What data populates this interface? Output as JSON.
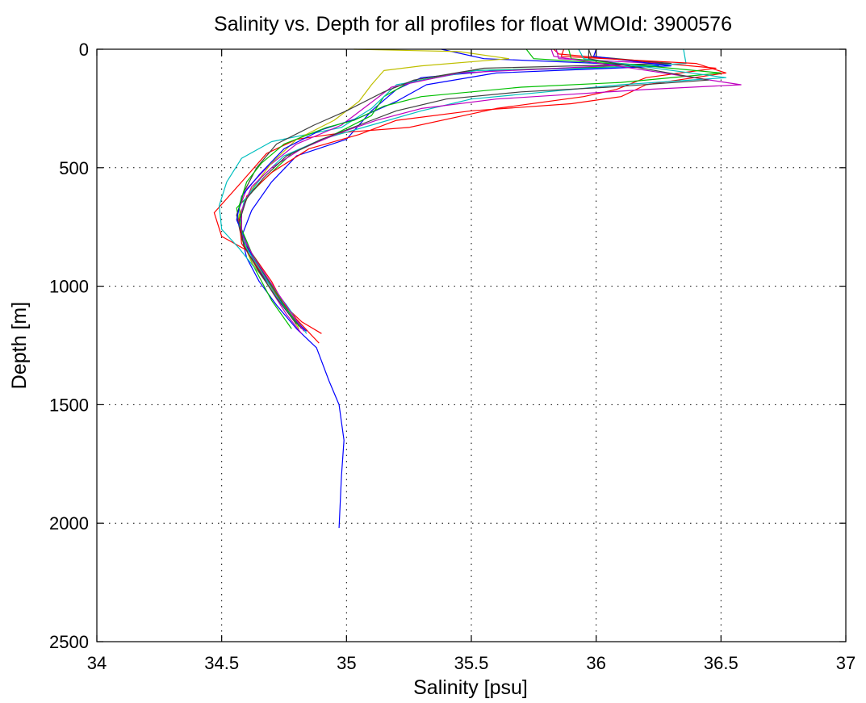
{
  "chart_data": {
    "type": "line",
    "title": "Salinity vs. Depth for all profiles for float WMOId: 3900576",
    "xlabel": "Salinity [psu]",
    "ylabel": "Depth [m]",
    "xlim": [
      34,
      37
    ],
    "ylim": [
      0,
      2500
    ],
    "y_reversed": true,
    "grid": true,
    "grid_style": "dotted",
    "legend": "none",
    "xticks": [
      "34",
      "34.5",
      "35",
      "35.5",
      "36",
      "36.5",
      "37"
    ],
    "yticks": [
      "0",
      "500",
      "1000",
      "1500",
      "2000",
      "2500"
    ],
    "series": [
      {
        "color": "#0000ff",
        "points": [
          [
            35.38,
            0
          ],
          [
            35.55,
            40
          ],
          [
            36.25,
            70
          ],
          [
            35.6,
            90
          ],
          [
            35.3,
            120
          ],
          [
            35.2,
            170
          ],
          [
            35.1,
            260
          ],
          [
            35.0,
            380
          ],
          [
            34.8,
            450
          ],
          [
            34.7,
            560
          ],
          [
            34.62,
            680
          ],
          [
            34.58,
            790
          ],
          [
            34.6,
            880
          ],
          [
            34.65,
            980
          ],
          [
            34.72,
            1080
          ],
          [
            34.8,
            1180
          ],
          [
            34.88,
            1260
          ],
          [
            34.93,
            1400
          ],
          [
            34.97,
            1500
          ],
          [
            34.99,
            1650
          ],
          [
            34.98,
            1800
          ],
          [
            34.97,
            2020
          ]
        ]
      },
      {
        "color": "#ff0000",
        "points": [
          [
            35.83,
            0
          ],
          [
            35.85,
            20
          ],
          [
            36.48,
            80
          ],
          [
            36.2,
            120
          ],
          [
            36.08,
            170
          ],
          [
            35.95,
            200
          ],
          [
            35.6,
            250
          ],
          [
            35.25,
            330
          ],
          [
            35.0,
            350
          ],
          [
            34.8,
            380
          ],
          [
            34.68,
            440
          ],
          [
            34.58,
            560
          ],
          [
            34.47,
            690
          ],
          [
            34.5,
            790
          ],
          [
            34.62,
            860
          ],
          [
            34.7,
            980
          ],
          [
            34.75,
            1080
          ],
          [
            34.82,
            1150
          ],
          [
            34.9,
            1200
          ]
        ]
      },
      {
        "color": "#00bf00",
        "points": [
          [
            35.72,
            0
          ],
          [
            35.75,
            40
          ],
          [
            36.22,
            70
          ],
          [
            35.5,
            90
          ],
          [
            35.25,
            140
          ],
          [
            35.15,
            200
          ],
          [
            35.1,
            280
          ],
          [
            34.95,
            360
          ],
          [
            34.78,
            440
          ],
          [
            34.66,
            560
          ],
          [
            34.56,
            670
          ],
          [
            34.58,
            800
          ],
          [
            34.63,
            920
          ],
          [
            34.7,
            1060
          ],
          [
            34.78,
            1180
          ]
        ]
      },
      {
        "color": "#00bfbf",
        "points": [
          [
            36.35,
            0
          ],
          [
            36.36,
            60
          ],
          [
            36.0,
            80
          ],
          [
            35.52,
            90
          ],
          [
            35.2,
            150
          ],
          [
            35.1,
            250
          ],
          [
            34.98,
            330
          ],
          [
            34.7,
            390
          ],
          [
            34.58,
            460
          ],
          [
            34.52,
            560
          ],
          [
            34.49,
            660
          ],
          [
            34.5,
            760
          ],
          [
            34.57,
            840
          ],
          [
            34.63,
            920
          ],
          [
            34.7,
            1000
          ],
          [
            34.76,
            1080
          ],
          [
            34.84,
            1200
          ]
        ]
      },
      {
        "color": "#bf00bf",
        "points": [
          [
            35.84,
            0
          ],
          [
            35.85,
            40
          ],
          [
            36.25,
            60
          ],
          [
            35.45,
            100
          ],
          [
            35.18,
            160
          ],
          [
            35.08,
            240
          ],
          [
            34.98,
            320
          ],
          [
            34.8,
            400
          ],
          [
            34.68,
            500
          ],
          [
            34.6,
            590
          ],
          [
            34.56,
            700
          ],
          [
            34.59,
            800
          ],
          [
            34.63,
            900
          ],
          [
            34.7,
            1020
          ],
          [
            34.76,
            1120
          ],
          [
            34.82,
            1200
          ]
        ]
      },
      {
        "color": "#bfbf00",
        "points": [
          [
            35.03,
            0
          ],
          [
            35.45,
            10
          ],
          [
            35.65,
            40
          ],
          [
            35.3,
            70
          ],
          [
            35.15,
            90
          ],
          [
            35.1,
            150
          ],
          [
            35.05,
            220
          ],
          [
            34.95,
            300
          ],
          [
            34.8,
            380
          ],
          [
            34.7,
            480
          ],
          [
            34.62,
            590
          ],
          [
            34.57,
            700
          ],
          [
            34.58,
            800
          ],
          [
            34.62,
            900
          ],
          [
            34.69,
            1000
          ],
          [
            34.76,
            1100
          ],
          [
            34.81,
            1180
          ]
        ]
      },
      {
        "color": "#404040",
        "points": [
          [
            35.97,
            0
          ],
          [
            35.98,
            30
          ],
          [
            36.3,
            60
          ],
          [
            35.55,
            80
          ],
          [
            35.27,
            130
          ],
          [
            35.15,
            180
          ],
          [
            35.0,
            260
          ],
          [
            34.87,
            320
          ],
          [
            34.72,
            400
          ],
          [
            34.64,
            500
          ],
          [
            34.59,
            600
          ],
          [
            34.56,
            700
          ],
          [
            34.58,
            800
          ],
          [
            34.64,
            900
          ],
          [
            34.7,
            1000
          ],
          [
            34.77,
            1110
          ],
          [
            34.82,
            1180
          ]
        ]
      },
      {
        "color": "#0000ff",
        "points": [
          [
            36.0,
            0
          ],
          [
            35.99,
            30
          ],
          [
            36.3,
            70
          ],
          [
            35.6,
            100
          ],
          [
            35.32,
            150
          ],
          [
            35.2,
            220
          ],
          [
            35.05,
            290
          ],
          [
            34.9,
            340
          ],
          [
            34.75,
            420
          ],
          [
            34.65,
            530
          ],
          [
            34.58,
            620
          ],
          [
            34.56,
            720
          ],
          [
            34.6,
            820
          ],
          [
            34.64,
            920
          ],
          [
            34.71,
            1020
          ],
          [
            34.78,
            1130
          ],
          [
            34.84,
            1190
          ]
        ]
      },
      {
        "color": "#ff0000",
        "points": [
          [
            35.87,
            0
          ],
          [
            35.86,
            30
          ],
          [
            36.4,
            60
          ],
          [
            36.52,
            100
          ],
          [
            36.2,
            150
          ],
          [
            36.1,
            200
          ],
          [
            35.9,
            230
          ],
          [
            35.5,
            260
          ],
          [
            35.2,
            300
          ],
          [
            35.05,
            360
          ],
          [
            34.85,
            420
          ],
          [
            34.7,
            520
          ],
          [
            34.6,
            620
          ],
          [
            34.57,
            720
          ],
          [
            34.58,
            820
          ],
          [
            34.65,
            930
          ],
          [
            34.73,
            1050
          ],
          [
            34.8,
            1140
          ],
          [
            34.89,
            1240
          ]
        ]
      },
      {
        "color": "#00bf00",
        "points": [
          [
            35.89,
            0
          ],
          [
            35.9,
            40
          ],
          [
            36.5,
            100
          ],
          [
            36.1,
            140
          ],
          [
            35.7,
            160
          ],
          [
            35.3,
            200
          ],
          [
            35.15,
            240
          ],
          [
            35.03,
            300
          ],
          [
            34.92,
            330
          ],
          [
            34.75,
            400
          ],
          [
            34.66,
            480
          ],
          [
            34.6,
            560
          ],
          [
            34.57,
            660
          ],
          [
            34.58,
            760
          ],
          [
            34.62,
            860
          ],
          [
            34.68,
            960
          ],
          [
            34.75,
            1080
          ],
          [
            34.81,
            1170
          ]
        ]
      },
      {
        "color": "#00bfbf",
        "points": [
          [
            35.93,
            0
          ],
          [
            35.95,
            40
          ],
          [
            36.52,
            120
          ],
          [
            36.1,
            150
          ],
          [
            35.8,
            180
          ],
          [
            35.5,
            210
          ],
          [
            35.3,
            260
          ],
          [
            35.1,
            320
          ],
          [
            34.9,
            380
          ],
          [
            34.75,
            450
          ],
          [
            34.66,
            540
          ],
          [
            34.59,
            640
          ],
          [
            34.57,
            740
          ],
          [
            34.6,
            840
          ],
          [
            34.66,
            940
          ],
          [
            34.73,
            1060
          ],
          [
            34.8,
            1160
          ]
        ]
      },
      {
        "color": "#bf00bf",
        "points": [
          [
            35.82,
            0
          ],
          [
            35.83,
            30
          ],
          [
            36.58,
            150
          ],
          [
            36.2,
            170
          ],
          [
            35.9,
            190
          ],
          [
            35.6,
            210
          ],
          [
            35.3,
            250
          ],
          [
            35.12,
            300
          ],
          [
            34.98,
            350
          ],
          [
            34.82,
            420
          ],
          [
            34.7,
            500
          ],
          [
            34.62,
            580
          ],
          [
            34.58,
            680
          ],
          [
            34.58,
            780
          ],
          [
            34.63,
            880
          ],
          [
            34.7,
            990
          ],
          [
            34.77,
            1100
          ],
          [
            34.83,
            1190
          ]
        ]
      },
      {
        "color": "#404040",
        "points": [
          [
            35.97,
            0
          ],
          [
            35.97,
            40
          ],
          [
            36.45,
            130
          ],
          [
            36.05,
            160
          ],
          [
            35.7,
            180
          ],
          [
            35.4,
            210
          ],
          [
            35.2,
            260
          ],
          [
            35.05,
            320
          ],
          [
            34.9,
            380
          ],
          [
            34.76,
            450
          ],
          [
            34.67,
            540
          ],
          [
            34.6,
            630
          ],
          [
            34.57,
            730
          ],
          [
            34.59,
            830
          ],
          [
            34.65,
            940
          ],
          [
            34.72,
            1050
          ],
          [
            34.8,
            1160
          ]
        ]
      }
    ]
  }
}
